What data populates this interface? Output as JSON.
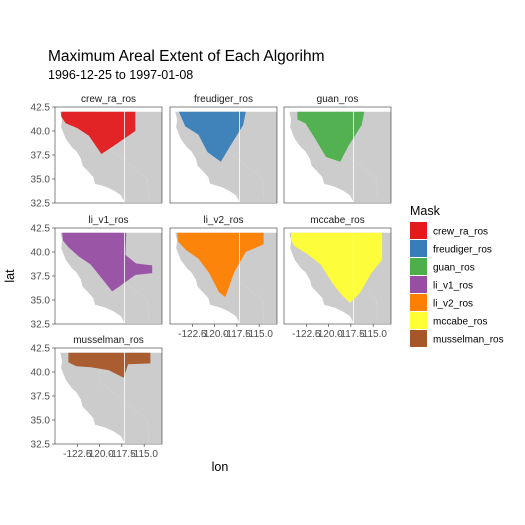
{
  "chart_data": {
    "type": "faceted-map",
    "title": "Maximum Areal Extent of Each Algorihm",
    "subtitle": "1996-12-25 to 1997-01-08",
    "xlabel": "lon",
    "ylabel": "lat",
    "xlim": [
      -125,
      -113
    ],
    "ylim": [
      32.5,
      42.5
    ],
    "x_ticks": [
      -122.5,
      -120.0,
      -117.5,
      -115.0
    ],
    "x_tick_labels": [
      "-122.5",
      "-120.0",
      "-117.5",
      "-115.0"
    ],
    "y_ticks": [
      42.5,
      40.0,
      37.5,
      35.0,
      32.5
    ],
    "y_tick_labels": [
      "42.5",
      "40.0",
      "37.5",
      "35.0",
      "32.5"
    ],
    "base_color": "#cccccc",
    "legend": {
      "title": "Mask",
      "position": "right",
      "entries": [
        {
          "name": "crew_ra_ros",
          "color": "#e41a1c"
        },
        {
          "name": "freudiger_ros",
          "color": "#377eb8"
        },
        {
          "name": "guan_ros",
          "color": "#4daf4a"
        },
        {
          "name": "li_v1_ros",
          "color": "#984ea3"
        },
        {
          "name": "li_v2_ros",
          "color": "#ff7f00"
        },
        {
          "name": "mccabe_ros",
          "color": "#ffff33"
        },
        {
          "name": "musselman_ros",
          "color": "#a65628"
        }
      ]
    },
    "panels": [
      {
        "name": "crew_ra_ros",
        "color": "#e41a1c",
        "extent": [
          [
            -124.3,
            42
          ],
          [
            -116,
            42
          ],
          [
            -116,
            40
          ],
          [
            -118.5,
            38.4
          ],
          [
            -119.8,
            37.6
          ],
          [
            -121.2,
            39.5
          ],
          [
            -122.5,
            40.3
          ],
          [
            -123.8,
            40.8
          ],
          [
            -124.3,
            41.5
          ]
        ]
      },
      {
        "name": "freudiger_ros",
        "color": "#377eb8",
        "extent": [
          [
            -124,
            42
          ],
          [
            -116.5,
            42
          ],
          [
            -116.8,
            40.6
          ],
          [
            -118.2,
            38.5
          ],
          [
            -119.3,
            36.8
          ],
          [
            -120.8,
            37.8
          ],
          [
            -121.8,
            39.6
          ],
          [
            -123.3,
            40.5
          ]
        ]
      },
      {
        "name": "guan_ros",
        "color": "#4daf4a",
        "extent": [
          [
            -123.5,
            42
          ],
          [
            -116,
            42
          ],
          [
            -116.3,
            40.6
          ],
          [
            -117.8,
            38.4
          ],
          [
            -118.7,
            36.8
          ],
          [
            -120.3,
            37.3
          ],
          [
            -121.5,
            39.2
          ],
          [
            -122.6,
            40.8
          ],
          [
            -123.5,
            41.2
          ]
        ]
      },
      {
        "name": "li_v1_ros",
        "color": "#984ea3",
        "extent": [
          [
            -124.2,
            42
          ],
          [
            -117,
            42
          ],
          [
            -117.1,
            39.7
          ],
          [
            -115.9,
            38.8
          ],
          [
            -114.1,
            38.6
          ],
          [
            -114.1,
            37.8
          ],
          [
            -116,
            37.6
          ],
          [
            -117.8,
            36.4
          ],
          [
            -118.6,
            35.9
          ],
          [
            -119.8,
            37.3
          ],
          [
            -121,
            38.7
          ],
          [
            -122.3,
            39.5
          ],
          [
            -123.5,
            40.5
          ],
          [
            -124.1,
            41.2
          ]
        ]
      },
      {
        "name": "li_v2_ros",
        "color": "#ff7f00",
        "extent": [
          [
            -124.2,
            42
          ],
          [
            -114.5,
            42
          ],
          [
            -114.5,
            40.8
          ],
          [
            -116.5,
            40
          ],
          [
            -117.8,
            37.9
          ],
          [
            -118.8,
            35.3
          ],
          [
            -119.5,
            35.8
          ],
          [
            -120.6,
            37.8
          ],
          [
            -121.8,
            39.3
          ],
          [
            -123.2,
            40.2
          ],
          [
            -124.1,
            41.1
          ]
        ]
      },
      {
        "name": "mccabe_ros",
        "color": "#ffff33",
        "extent": [
          [
            -124.2,
            42
          ],
          [
            -114,
            42
          ],
          [
            -114,
            39.2
          ],
          [
            -115.2,
            37.8
          ],
          [
            -116.5,
            35.7
          ],
          [
            -117.6,
            34.7
          ],
          [
            -118.6,
            35.6
          ],
          [
            -119.6,
            36.8
          ],
          [
            -120.9,
            38.7
          ],
          [
            -122.4,
            39.8
          ],
          [
            -123.8,
            40.6
          ],
          [
            -124.2,
            41.2
          ]
        ]
      },
      {
        "name": "musselman_ros",
        "color": "#a65628",
        "extent": [
          [
            -123.5,
            42
          ],
          [
            -114.3,
            42
          ],
          [
            -114.3,
            40.9
          ],
          [
            -116.8,
            40.8
          ],
          [
            -117.3,
            39.4
          ],
          [
            -119,
            40.2
          ],
          [
            -121,
            40.5
          ],
          [
            -122.6,
            40.6
          ],
          [
            -123.5,
            41
          ]
        ]
      }
    ],
    "grid": false
  }
}
